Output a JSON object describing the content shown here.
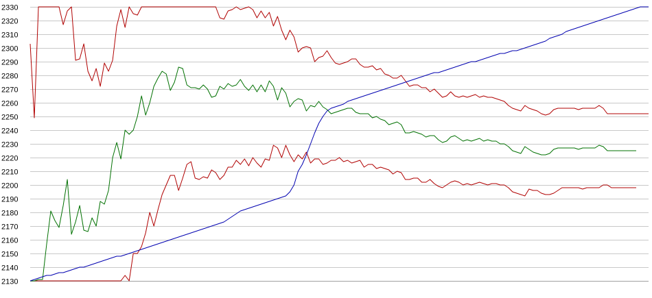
{
  "chart_data": {
    "type": "line",
    "title": "",
    "xlabel": "",
    "ylabel": "",
    "ylim": [
      2130,
      2330
    ],
    "yticks": [
      2130,
      2140,
      2150,
      2160,
      2170,
      2180,
      2190,
      2200,
      2210,
      2220,
      2230,
      2240,
      2250,
      2260,
      2270,
      2280,
      2290,
      2300,
      2310,
      2320,
      2330
    ],
    "xlim": [
      0,
      150
    ],
    "grid": true,
    "legend": "none",
    "series": [
      {
        "color": "#b00000",
        "x": [
          0,
          1,
          2,
          3,
          4,
          5,
          6,
          7,
          8,
          9,
          10,
          11,
          12,
          13,
          14,
          15,
          16,
          17,
          18,
          19,
          20,
          21,
          22,
          23,
          24,
          25,
          26,
          27,
          28,
          29,
          30,
          31,
          32,
          33,
          34,
          35,
          36,
          37,
          38,
          39,
          40,
          41,
          42,
          43,
          44,
          45,
          46,
          47,
          48,
          49,
          50,
          51,
          52,
          53,
          54,
          55,
          56,
          57,
          58,
          59,
          60,
          61,
          62,
          63,
          64,
          65,
          66,
          67,
          68,
          69,
          70,
          71,
          72,
          73,
          74,
          75,
          76,
          77,
          78,
          79,
          80,
          81,
          82,
          83,
          84,
          85,
          86,
          87,
          88,
          89,
          90,
          91,
          92,
          93,
          94,
          95,
          96,
          97,
          98,
          99,
          100,
          101,
          102,
          103,
          104,
          105,
          106,
          107,
          108,
          109,
          110,
          111,
          112,
          113,
          114,
          115,
          116,
          117,
          118,
          119,
          120,
          121,
          122,
          123,
          124,
          125,
          126,
          127,
          128,
          129,
          130,
          131,
          132,
          133,
          134,
          135,
          136,
          137,
          138,
          139,
          140,
          141,
          142,
          143,
          144,
          145,
          146,
          147,
          148,
          149,
          150
        ],
        "values": [
          2303,
          2249,
          2330,
          2330,
          2330,
          2330,
          2330,
          2330,
          2317,
          2327,
          2330,
          2291,
          2292,
          2303,
          2283,
          2276,
          2285,
          2272,
          2289,
          2283,
          2291,
          2316,
          2328,
          2315,
          2330,
          2325,
          2324,
          2330,
          2330,
          2330,
          2330,
          2330,
          2330,
          2330,
          2330,
          2330,
          2330,
          2330,
          2330,
          2330,
          2330,
          2330,
          2330,
          2330,
          2330,
          2330,
          2322,
          2321,
          2327,
          2328,
          2330,
          2328,
          2329,
          2330,
          2328,
          2322,
          2327,
          2322,
          2326,
          2316,
          2323,
          2313,
          2306,
          2313,
          2308,
          2297,
          2300,
          2301,
          2300,
          2290,
          2293,
          2294,
          2298,
          2293,
          2289,
          2288,
          2289,
          2290,
          2292,
          2292,
          2288,
          2286,
          2286,
          2287,
          2284,
          2285,
          2281,
          2280,
          2278,
          2278,
          2280,
          2276,
          2272,
          2273,
          2273,
          2271,
          2271,
          2268,
          2270,
          2267,
          2264,
          2265,
          2268,
          2265,
          2264,
          2265,
          2264,
          2265,
          2266,
          2264,
          2265,
          2264,
          2264,
          2263,
          2262,
          2261,
          2258,
          2256,
          2255,
          2254,
          2258,
          2256,
          2255,
          2254,
          2252,
          2251,
          2252,
          2255,
          2256,
          2256,
          2256,
          2256,
          2256,
          2255,
          2256,
          2256,
          2256,
          2256,
          2258,
          2256,
          2252,
          2252,
          2252,
          2252,
          2252,
          2252,
          2252,
          2252,
          2252,
          2252,
          2252
        ]
      },
      {
        "color": "#b00000",
        "x": [
          0,
          1,
          2,
          3,
          4,
          5,
          6,
          7,
          8,
          9,
          10,
          11,
          12,
          13,
          14,
          15,
          16,
          17,
          18,
          19,
          20,
          21,
          22,
          23,
          24,
          25,
          26,
          27,
          28,
          29,
          30,
          31,
          32,
          33,
          34,
          35,
          36,
          37,
          38,
          39,
          40,
          41,
          42,
          43,
          44,
          45,
          46,
          47,
          48,
          49,
          50,
          51,
          52,
          53,
          54,
          55,
          56,
          57,
          58,
          59,
          60,
          61,
          62,
          63,
          64,
          65,
          66,
          67,
          68,
          69,
          70,
          71,
          72,
          73,
          74,
          75,
          76,
          77,
          78,
          79,
          80,
          81,
          82,
          83,
          84,
          85,
          86,
          87,
          88,
          89,
          90,
          91,
          92,
          93,
          94,
          95,
          96,
          97,
          98,
          99,
          100,
          101,
          102,
          103,
          104,
          105,
          106,
          107,
          108,
          109,
          110,
          111,
          112,
          113,
          114,
          115,
          116,
          117,
          118,
          119,
          120,
          121,
          122,
          123,
          124,
          125,
          126,
          127,
          128,
          129,
          130,
          131,
          132,
          133,
          134,
          135,
          136,
          137,
          138,
          139,
          140,
          141,
          142,
          143,
          144,
          145,
          146,
          147
        ],
        "values": [
          2130,
          2130,
          2130,
          2130,
          2130,
          2130,
          2130,
          2130,
          2130,
          2130,
          2130,
          2130,
          2130,
          2130,
          2130,
          2130,
          2130,
          2130,
          2130,
          2130,
          2130,
          2130,
          2130,
          2134,
          2130,
          2150,
          2150,
          2155,
          2165,
          2180,
          2170,
          2182,
          2193,
          2200,
          2207,
          2207,
          2196,
          2205,
          2215,
          2217,
          2205,
          2204,
          2206,
          2205,
          2211,
          2209,
          2204,
          2207,
          2213,
          2213,
          2218,
          2215,
          2219,
          2214,
          2220,
          2216,
          2213,
          2219,
          2218,
          2229,
          2227,
          2220,
          2229,
          2222,
          2217,
          2222,
          2219,
          2224,
          2216,
          2219,
          2219,
          2215,
          2216,
          2218,
          2218,
          2220,
          2217,
          2218,
          2216,
          2217,
          2218,
          2213,
          2215,
          2215,
          2212,
          2213,
          2212,
          2211,
          2208,
          2210,
          2209,
          2204,
          2204,
          2205,
          2205,
          2202,
          2202,
          2204,
          2201,
          2199,
          2198,
          2200,
          2202,
          2203,
          2202,
          2200,
          2201,
          2200,
          2201,
          2202,
          2201,
          2200,
          2201,
          2201,
          2200,
          2200,
          2198,
          2195,
          2194,
          2193,
          2192,
          2197,
          2196,
          2196,
          2194,
          2193,
          2193,
          2194,
          2196,
          2198,
          2198,
          2198,
          2198,
          2198,
          2197,
          2198,
          2198,
          2198,
          2198,
          2200,
          2200,
          2198,
          2198,
          2198,
          2198,
          2198,
          2198,
          2198
        ]
      },
      {
        "color": "#007000",
        "x": [
          0,
          1,
          2,
          3,
          4,
          5,
          6,
          7,
          8,
          9,
          10,
          11,
          12,
          13,
          14,
          15,
          16,
          17,
          18,
          19,
          20,
          21,
          22,
          23,
          24,
          25,
          26,
          27,
          28,
          29,
          30,
          31,
          32,
          33,
          34,
          35,
          36,
          37,
          38,
          39,
          40,
          41,
          42,
          43,
          44,
          45,
          46,
          47,
          48,
          49,
          50,
          51,
          52,
          53,
          54,
          55,
          56,
          57,
          58,
          59,
          60,
          61,
          62,
          63,
          64,
          65,
          66,
          67,
          68,
          69,
          70,
          71,
          72,
          73,
          74,
          75,
          76,
          77,
          78,
          79,
          80,
          81,
          82,
          83,
          84,
          85,
          86,
          87,
          88,
          89,
          90,
          91,
          92,
          93,
          94,
          95,
          96,
          97,
          98,
          99,
          100,
          101,
          102,
          103,
          104,
          105,
          106,
          107,
          108,
          109,
          110,
          111,
          112,
          113,
          114,
          115,
          116,
          117,
          118,
          119,
          120,
          121,
          122,
          123,
          124,
          125,
          126,
          127,
          128,
          129,
          130,
          131,
          132,
          133,
          134,
          135,
          136,
          137,
          138,
          139,
          140,
          141,
          142,
          143,
          144,
          145,
          146,
          147
        ],
        "values": [
          2130,
          2130,
          2131,
          2131,
          2157,
          2181,
          2174,
          2169,
          2185,
          2204,
          2164,
          2173,
          2185,
          2167,
          2166,
          2176,
          2170,
          2188,
          2186,
          2196,
          2220,
          2231,
          2219,
          2240,
          2237,
          2240,
          2250,
          2265,
          2251,
          2260,
          2272,
          2278,
          2283,
          2281,
          2269,
          2275,
          2286,
          2285,
          2273,
          2271,
          2271,
          2270,
          2273,
          2270,
          2264,
          2265,
          2272,
          2270,
          2274,
          2272,
          2273,
          2277,
          2272,
          2269,
          2273,
          2268,
          2273,
          2268,
          2276,
          2272,
          2262,
          2271,
          2267,
          2257,
          2261,
          2263,
          2262,
          2254,
          2258,
          2257,
          2261,
          2257,
          2255,
          2252,
          2253,
          2254,
          2255,
          2256,
          2256,
          2253,
          2252,
          2252,
          2252,
          2249,
          2250,
          2248,
          2247,
          2244,
          2245,
          2246,
          2244,
          2238,
          2238,
          2239,
          2238,
          2237,
          2235,
          2236,
          2236,
          2233,
          2231,
          2232,
          2235,
          2236,
          2234,
          2232,
          2233,
          2232,
          2233,
          2234,
          2232,
          2233,
          2232,
          2232,
          2230,
          2230,
          2228,
          2225,
          2224,
          2223,
          2228,
          2226,
          2224,
          2223,
          2222,
          2222,
          2223,
          2226,
          2227,
          2227,
          2227,
          2227,
          2227,
          2226,
          2227,
          2227,
          2227,
          2227,
          2229,
          2228,
          2225,
          2225,
          2225,
          2225,
          2225,
          2225,
          2225,
          2225
        ]
      },
      {
        "color": "#0000b0",
        "x": [
          0,
          1,
          2,
          3,
          4,
          5,
          6,
          7,
          8,
          9,
          10,
          11,
          12,
          13,
          14,
          15,
          16,
          17,
          18,
          19,
          20,
          21,
          22,
          23,
          24,
          25,
          26,
          27,
          28,
          29,
          30,
          31,
          32,
          33,
          34,
          35,
          36,
          37,
          38,
          39,
          40,
          41,
          42,
          43,
          44,
          45,
          46,
          47,
          48,
          49,
          50,
          51,
          52,
          53,
          54,
          55,
          56,
          57,
          58,
          59,
          60,
          61,
          62,
          63,
          64,
          65,
          66,
          67,
          68,
          69,
          70,
          71,
          72,
          73,
          74,
          75,
          76,
          77,
          78,
          79,
          80,
          81,
          82,
          83,
          84,
          85,
          86,
          87,
          88,
          89,
          90,
          91,
          92,
          93,
          94,
          95,
          96,
          97,
          98,
          99,
          100,
          101,
          102,
          103,
          104,
          105,
          106,
          107,
          108,
          109,
          110,
          111,
          112,
          113,
          114,
          115,
          116,
          117,
          118,
          119,
          120,
          121,
          122,
          123,
          124,
          125,
          126,
          127,
          128,
          129,
          130,
          131,
          132,
          133,
          134,
          135,
          136,
          137,
          138,
          139,
          140,
          141,
          142,
          143,
          144,
          145,
          146,
          147,
          148,
          149,
          150
        ],
        "values": [
          2130,
          2131,
          2132,
          2133,
          2134,
          2134,
          2135,
          2136,
          2136,
          2137,
          2138,
          2139,
          2140,
          2140,
          2141,
          2142,
          2143,
          2144,
          2145,
          2146,
          2147,
          2148,
          2148,
          2149,
          2150,
          2151,
          2152,
          2153,
          2154,
          2155,
          2156,
          2157,
          2158,
          2159,
          2160,
          2161,
          2162,
          2163,
          2164,
          2165,
          2166,
          2167,
          2168,
          2169,
          2170,
          2171,
          2172,
          2173,
          2175,
          2177,
          2179,
          2181,
          2182,
          2183,
          2184,
          2185,
          2186,
          2187,
          2188,
          2189,
          2190,
          2191,
          2192,
          2195,
          2200,
          2210,
          2215,
          2222,
          2230,
          2238,
          2245,
          2250,
          2254,
          2256,
          2257,
          2258,
          2259,
          2261,
          2262,
          2263,
          2264,
          2265,
          2266,
          2267,
          2268,
          2269,
          2270,
          2271,
          2272,
          2273,
          2274,
          2275,
          2276,
          2277,
          2278,
          2279,
          2280,
          2281,
          2282,
          2282,
          2283,
          2284,
          2285,
          2286,
          2287,
          2288,
          2289,
          2290,
          2290,
          2291,
          2292,
          2293,
          2294,
          2295,
          2296,
          2296,
          2297,
          2298,
          2298,
          2299,
          2300,
          2301,
          2302,
          2303,
          2304,
          2305,
          2307,
          2308,
          2309,
          2310,
          2312,
          2313,
          2314,
          2315,
          2316,
          2317,
          2318,
          2319,
          2320,
          2321,
          2322,
          2323,
          2324,
          2325,
          2326,
          2327,
          2328,
          2329,
          2330,
          2330,
          2330
        ]
      }
    ]
  }
}
